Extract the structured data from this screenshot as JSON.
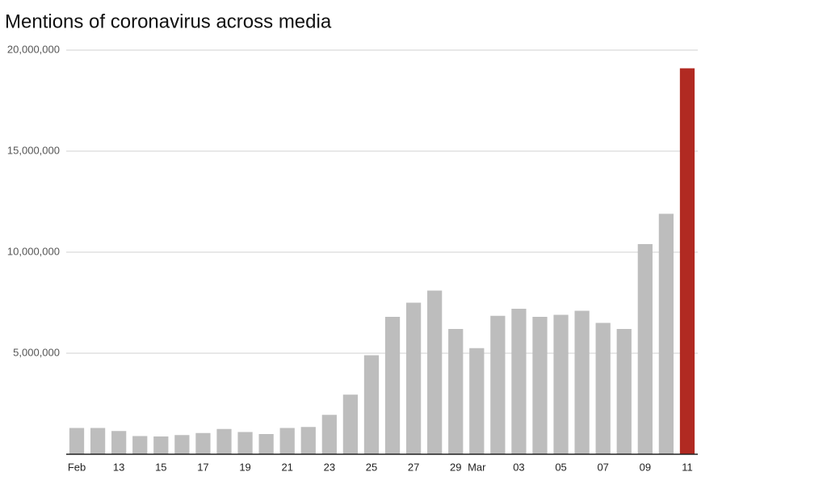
{
  "chart_data": {
    "type": "bar",
    "title": "Mentions of coronavirus across media",
    "categories": [
      "Feb",
      null,
      "13",
      null,
      "15",
      null,
      "17",
      null,
      "19",
      null,
      "21",
      null,
      "23",
      null,
      "25",
      null,
      "27",
      null,
      "29",
      "Mar",
      null,
      "03",
      null,
      "05",
      null,
      "07",
      null,
      "09",
      null,
      "11"
    ],
    "values": [
      1300000,
      1300000,
      1150000,
      900000,
      880000,
      950000,
      1050000,
      1250000,
      1100000,
      1000000,
      1300000,
      1350000,
      1950000,
      2950000,
      4900000,
      6800000,
      7500000,
      8100000,
      6200000,
      5250000,
      6850000,
      7200000,
      6800000,
      6900000,
      7100000,
      6500000,
      6200000,
      10400000,
      11900000,
      19100000
    ],
    "colors": [
      "#bdbdbd",
      "#bdbdbd",
      "#bdbdbd",
      "#bdbdbd",
      "#bdbdbd",
      "#bdbdbd",
      "#bdbdbd",
      "#bdbdbd",
      "#bdbdbd",
      "#bdbdbd",
      "#bdbdbd",
      "#bdbdbd",
      "#bdbdbd",
      "#bdbdbd",
      "#bdbdbd",
      "#bdbdbd",
      "#bdbdbd",
      "#bdbdbd",
      "#bdbdbd",
      "#bdbdbd",
      "#bdbdbd",
      "#bdbdbd",
      "#bdbdbd",
      "#bdbdbd",
      "#bdbdbd",
      "#bdbdbd",
      "#bdbdbd",
      "#bdbdbd",
      "#bdbdbd",
      "#b12a22"
    ],
    "ylim": [
      0,
      20000000
    ],
    "yticks": [
      {
        "value": 5000000,
        "label": "5,000,000"
      },
      {
        "value": 10000000,
        "label": "10,000,000"
      },
      {
        "value": 15000000,
        "label": "15,000,000"
      },
      {
        "value": 20000000,
        "label": "20,000,000"
      }
    ],
    "grid": true
  }
}
